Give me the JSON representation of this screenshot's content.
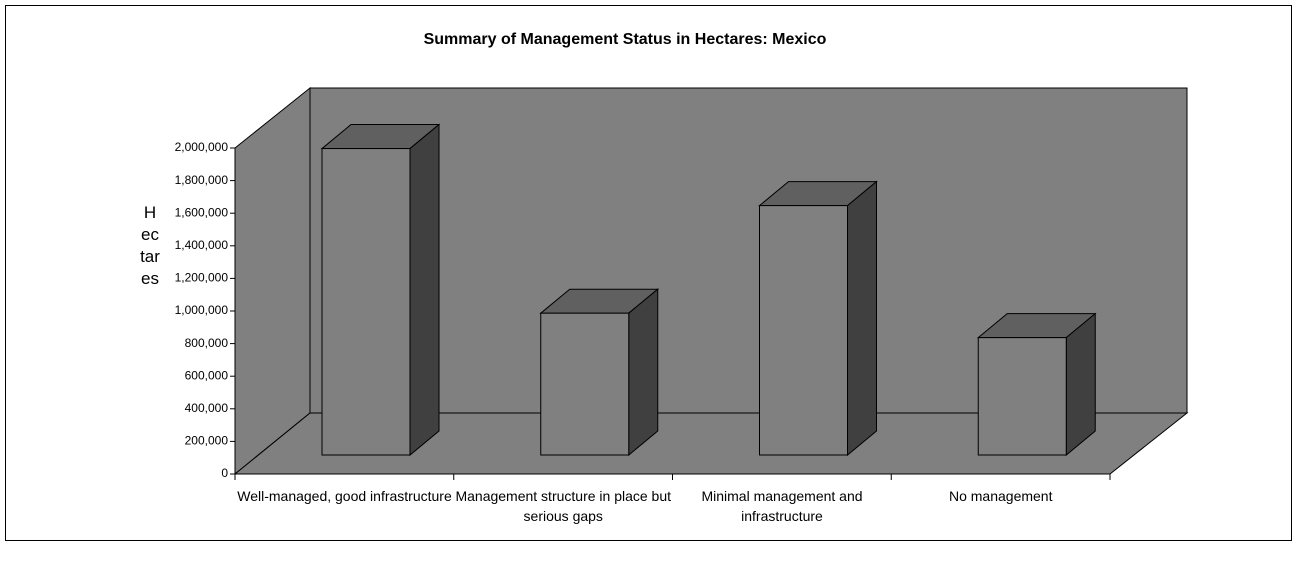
{
  "chart_data": {
    "type": "bar3d",
    "title": "Summary of Management Status in Hectares: Mexico",
    "y_label": "Hectares",
    "categories": [
      "Well-managed, good infrastructure",
      "Management structure in place but serious gaps",
      "Minimal management and infrastructure",
      "No management"
    ],
    "values": [
      1880000,
      870000,
      1530000,
      720000
    ],
    "color": "#808080",
    "ylim": [
      0,
      2000000
    ],
    "yticks": [
      0,
      {
        "value": 200000,
        "label": "200,000"
      },
      {
        "value": 400000,
        "label": "400,000"
      },
      {
        "value": 600000,
        "label": "600,000"
      },
      {
        "value": 800000,
        "label": "800,000"
      },
      {
        "value": 1000000,
        "label": "1,000,000"
      },
      {
        "value": 1200000,
        "label": "1,200,000"
      },
      {
        "value": 1400000,
        "label": "1,400,000"
      },
      {
        "value": 1600000,
        "label": "1,600,000"
      },
      {
        "value": 1800000,
        "label": "1,800,000"
      },
      {
        "value": 2000000,
        "label": "2,000,000"
      }
    ]
  }
}
